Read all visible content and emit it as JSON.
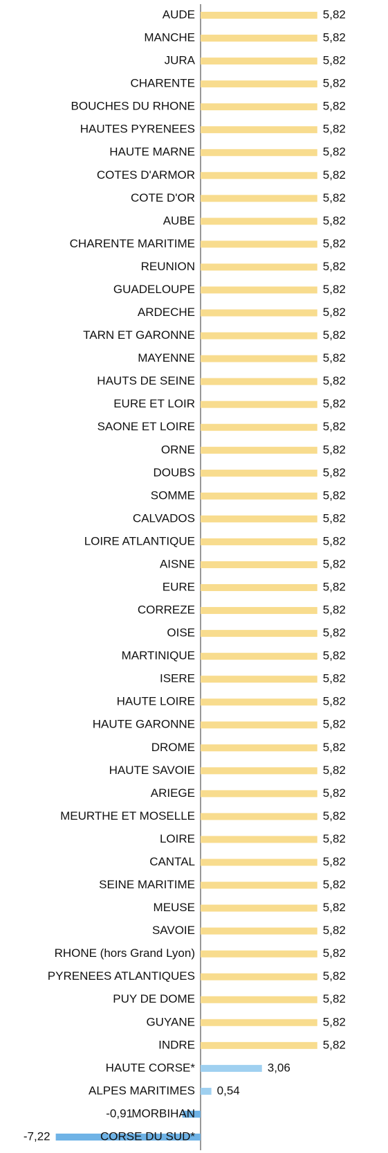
{
  "chart_data": {
    "type": "bar",
    "orientation": "horizontal",
    "categories": [
      "AUDE",
      "MANCHE",
      "JURA",
      "CHARENTE",
      "BOUCHES DU RHONE",
      "HAUTES PYRENEES",
      "HAUTE MARNE",
      "COTES D'ARMOR",
      "COTE D'OR",
      "AUBE",
      "CHARENTE MARITIME",
      "REUNION",
      "GUADELOUPE",
      "ARDECHE",
      "TARN ET GARONNE",
      "MAYENNE",
      "HAUTS DE SEINE",
      "EURE ET LOIR",
      "SAONE ET LOIRE",
      "ORNE",
      "DOUBS",
      "SOMME",
      "CALVADOS",
      "LOIRE ATLANTIQUE",
      "AISNE",
      "EURE",
      "CORREZE",
      "OISE",
      "MARTINIQUE",
      "ISERE",
      "HAUTE LOIRE",
      "HAUTE GARONNE",
      "DROME",
      "HAUTE SAVOIE",
      "ARIEGE",
      "MEURTHE ET MOSELLE",
      "LOIRE",
      "CANTAL",
      "SEINE MARITIME",
      "MEUSE",
      "SAVOIE",
      "RHONE (hors Grand Lyon)",
      "PYRENEES ATLANTIQUES",
      "PUY DE DOME",
      "GUYANE",
      "INDRE",
      "HAUTE CORSE*",
      "ALPES MARITIMES",
      "MORBIHAN",
      "CORSE DU SUD*"
    ],
    "values": [
      5.82,
      5.82,
      5.82,
      5.82,
      5.82,
      5.82,
      5.82,
      5.82,
      5.82,
      5.82,
      5.82,
      5.82,
      5.82,
      5.82,
      5.82,
      5.82,
      5.82,
      5.82,
      5.82,
      5.82,
      5.82,
      5.82,
      5.82,
      5.82,
      5.82,
      5.82,
      5.82,
      5.82,
      5.82,
      5.82,
      5.82,
      5.82,
      5.82,
      5.82,
      5.82,
      5.82,
      5.82,
      5.82,
      5.82,
      5.82,
      5.82,
      5.82,
      5.82,
      5.82,
      5.82,
      5.82,
      3.06,
      0.54,
      -0.91,
      -7.22
    ],
    "value_labels": [
      "5,82",
      "5,82",
      "5,82",
      "5,82",
      "5,82",
      "5,82",
      "5,82",
      "5,82",
      "5,82",
      "5,82",
      "5,82",
      "5,82",
      "5,82",
      "5,82",
      "5,82",
      "5,82",
      "5,82",
      "5,82",
      "5,82",
      "5,82",
      "5,82",
      "5,82",
      "5,82",
      "5,82",
      "5,82",
      "5,82",
      "5,82",
      "5,82",
      "5,82",
      "5,82",
      "5,82",
      "5,82",
      "5,82",
      "5,82",
      "5,82",
      "5,82",
      "5,82",
      "5,82",
      "5,82",
      "5,82",
      "5,82",
      "5,82",
      "5,82",
      "5,82",
      "5,82",
      "5,82",
      "3,06",
      "0,54",
      "-0,91",
      "-7,22"
    ],
    "colors": [
      "#f8dc8e",
      "#f8dc8e",
      "#f8dc8e",
      "#f8dc8e",
      "#f8dc8e",
      "#f8dc8e",
      "#f8dc8e",
      "#f8dc8e",
      "#f8dc8e",
      "#f8dc8e",
      "#f8dc8e",
      "#f8dc8e",
      "#f8dc8e",
      "#f8dc8e",
      "#f8dc8e",
      "#f8dc8e",
      "#f8dc8e",
      "#f8dc8e",
      "#f8dc8e",
      "#f8dc8e",
      "#f8dc8e",
      "#f8dc8e",
      "#f8dc8e",
      "#f8dc8e",
      "#f8dc8e",
      "#f8dc8e",
      "#f8dc8e",
      "#f8dc8e",
      "#f8dc8e",
      "#f8dc8e",
      "#f8dc8e",
      "#f8dc8e",
      "#f8dc8e",
      "#f8dc8e",
      "#f8dc8e",
      "#f8dc8e",
      "#f8dc8e",
      "#f8dc8e",
      "#f8dc8e",
      "#f8dc8e",
      "#f8dc8e",
      "#f8dc8e",
      "#f8dc8e",
      "#f8dc8e",
      "#f8dc8e",
      "#f8dc8e",
      "#9fd0f0",
      "#9fd0f0",
      "#6fb3e6",
      "#6fb3e6"
    ]
  }
}
